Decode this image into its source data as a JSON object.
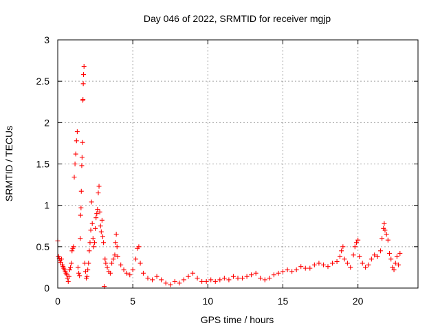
{
  "chart_data": {
    "type": "scatter",
    "title": "Day 046 of 2022, SRMTID for receiver mgjp",
    "xlabel": "GPS time / hours",
    "ylabel": "SRMTID / TECUs",
    "xlim": [
      0,
      24
    ],
    "ylim": [
      0,
      3
    ],
    "xticks": [
      0,
      5,
      10,
      15,
      20
    ],
    "xtick_labels": [
      "0",
      "5",
      "10",
      "15",
      "20"
    ],
    "yticks": [
      0,
      0.5,
      1,
      1.5,
      2,
      2.5,
      3
    ],
    "ytick_labels": [
      "0",
      "0.5",
      "1",
      "1.5",
      "2",
      "2.5",
      "3"
    ],
    "grid": true,
    "marker": "+",
    "marker_color": "#ff0000",
    "series": [
      {
        "name": "SRMTID",
        "points": [
          [
            0.0,
            0.57
          ],
          [
            0.05,
            0.38
          ],
          [
            0.1,
            0.36
          ],
          [
            0.15,
            0.33
          ],
          [
            0.2,
            0.31
          ],
          [
            0.25,
            0.35
          ],
          [
            0.3,
            0.28
          ],
          [
            0.35,
            0.26
          ],
          [
            0.4,
            0.24
          ],
          [
            0.45,
            0.22
          ],
          [
            0.5,
            0.2
          ],
          [
            0.55,
            0.18
          ],
          [
            0.6,
            0.16
          ],
          [
            0.65,
            0.12
          ],
          [
            0.7,
            0.08
          ],
          [
            0.75,
            0.14
          ],
          [
            0.8,
            0.22
          ],
          [
            0.85,
            0.25
          ],
          [
            0.9,
            0.3
          ],
          [
            0.95,
            0.45
          ],
          [
            1.0,
            0.48
          ],
          [
            1.05,
            0.5
          ],
          [
            1.1,
            1.34
          ],
          [
            1.15,
            1.5
          ],
          [
            1.2,
            1.62
          ],
          [
            1.25,
            1.78
          ],
          [
            1.3,
            1.89
          ],
          [
            1.35,
            0.25
          ],
          [
            1.4,
            0.18
          ],
          [
            1.45,
            0.15
          ],
          [
            1.5,
            0.6
          ],
          [
            1.52,
            0.88
          ],
          [
            1.55,
            0.97
          ],
          [
            1.57,
            1.17
          ],
          [
            1.6,
            1.48
          ],
          [
            1.62,
            1.58
          ],
          [
            1.65,
            1.76
          ],
          [
            1.67,
            2.27
          ],
          [
            1.68,
            2.28
          ],
          [
            1.7,
            2.47
          ],
          [
            1.72,
            2.58
          ],
          [
            1.75,
            2.68
          ],
          [
            1.8,
            0.3
          ],
          [
            1.85,
            0.2
          ],
          [
            1.9,
            0.12
          ],
          [
            1.95,
            0.14
          ],
          [
            2.0,
            0.22
          ],
          [
            2.05,
            0.3
          ],
          [
            2.1,
            0.45
          ],
          [
            2.15,
            0.55
          ],
          [
            2.2,
            0.7
          ],
          [
            2.25,
            1.04
          ],
          [
            2.3,
            0.78
          ],
          [
            2.35,
            0.6
          ],
          [
            2.4,
            0.5
          ],
          [
            2.45,
            0.55
          ],
          [
            2.5,
            0.72
          ],
          [
            2.55,
            0.85
          ],
          [
            2.6,
            0.9
          ],
          [
            2.65,
            0.95
          ],
          [
            2.7,
            1.15
          ],
          [
            2.75,
            1.23
          ],
          [
            2.8,
            0.92
          ],
          [
            2.85,
            0.75
          ],
          [
            2.9,
            0.68
          ],
          [
            2.95,
            0.82
          ],
          [
            3.0,
            0.62
          ],
          [
            3.05,
            0.55
          ],
          [
            3.1,
            0.02
          ],
          [
            3.15,
            0.35
          ],
          [
            3.2,
            0.3
          ],
          [
            3.3,
            0.25
          ],
          [
            3.4,
            0.2
          ],
          [
            3.5,
            0.18
          ],
          [
            3.6,
            0.3
          ],
          [
            3.7,
            0.35
          ],
          [
            3.8,
            0.4
          ],
          [
            3.85,
            0.55
          ],
          [
            3.9,
            0.65
          ],
          [
            3.95,
            0.5
          ],
          [
            4.0,
            0.38
          ],
          [
            4.2,
            0.28
          ],
          [
            4.4,
            0.22
          ],
          [
            4.6,
            0.18
          ],
          [
            4.8,
            0.16
          ],
          [
            5.0,
            0.22
          ],
          [
            5.2,
            0.35
          ],
          [
            5.3,
            0.48
          ],
          [
            5.4,
            0.5
          ],
          [
            5.5,
            0.3
          ],
          [
            5.7,
            0.18
          ],
          [
            6.0,
            0.12
          ],
          [
            6.3,
            0.1
          ],
          [
            6.6,
            0.14
          ],
          [
            6.9,
            0.1
          ],
          [
            7.2,
            0.06
          ],
          [
            7.5,
            0.04
          ],
          [
            7.8,
            0.08
          ],
          [
            8.1,
            0.06
          ],
          [
            8.4,
            0.1
          ],
          [
            8.7,
            0.14
          ],
          [
            9.0,
            0.18
          ],
          [
            9.3,
            0.12
          ],
          [
            9.6,
            0.08
          ],
          [
            9.9,
            0.08
          ],
          [
            10.2,
            0.1
          ],
          [
            10.5,
            0.08
          ],
          [
            10.8,
            0.1
          ],
          [
            11.1,
            0.12
          ],
          [
            11.4,
            0.1
          ],
          [
            11.7,
            0.14
          ],
          [
            12.0,
            0.12
          ],
          [
            12.3,
            0.12
          ],
          [
            12.6,
            0.14
          ],
          [
            12.9,
            0.16
          ],
          [
            13.2,
            0.18
          ],
          [
            13.5,
            0.12
          ],
          [
            13.8,
            0.1
          ],
          [
            14.1,
            0.12
          ],
          [
            14.4,
            0.16
          ],
          [
            14.7,
            0.18
          ],
          [
            15.0,
            0.2
          ],
          [
            15.3,
            0.22
          ],
          [
            15.6,
            0.2
          ],
          [
            15.9,
            0.22
          ],
          [
            16.2,
            0.26
          ],
          [
            16.5,
            0.24
          ],
          [
            16.8,
            0.24
          ],
          [
            17.1,
            0.28
          ],
          [
            17.4,
            0.3
          ],
          [
            17.7,
            0.28
          ],
          [
            18.0,
            0.26
          ],
          [
            18.3,
            0.3
          ],
          [
            18.6,
            0.32
          ],
          [
            18.8,
            0.38
          ],
          [
            18.9,
            0.45
          ],
          [
            19.0,
            0.5
          ],
          [
            19.1,
            0.35
          ],
          [
            19.3,
            0.3
          ],
          [
            19.5,
            0.25
          ],
          [
            19.7,
            0.4
          ],
          [
            19.8,
            0.5
          ],
          [
            19.9,
            0.55
          ],
          [
            20.0,
            0.58
          ],
          [
            20.1,
            0.38
          ],
          [
            20.3,
            0.3
          ],
          [
            20.5,
            0.25
          ],
          [
            20.7,
            0.28
          ],
          [
            20.9,
            0.35
          ],
          [
            21.1,
            0.4
          ],
          [
            21.3,
            0.38
          ],
          [
            21.5,
            0.45
          ],
          [
            21.6,
            0.6
          ],
          [
            21.7,
            0.72
          ],
          [
            21.75,
            0.78
          ],
          [
            21.8,
            0.7
          ],
          [
            21.9,
            0.65
          ],
          [
            22.0,
            0.58
          ],
          [
            22.1,
            0.42
          ],
          [
            22.2,
            0.35
          ],
          [
            22.3,
            0.25
          ],
          [
            22.4,
            0.22
          ],
          [
            22.5,
            0.3
          ],
          [
            22.6,
            0.38
          ],
          [
            22.7,
            0.28
          ],
          [
            22.8,
            0.42
          ]
        ]
      }
    ]
  }
}
